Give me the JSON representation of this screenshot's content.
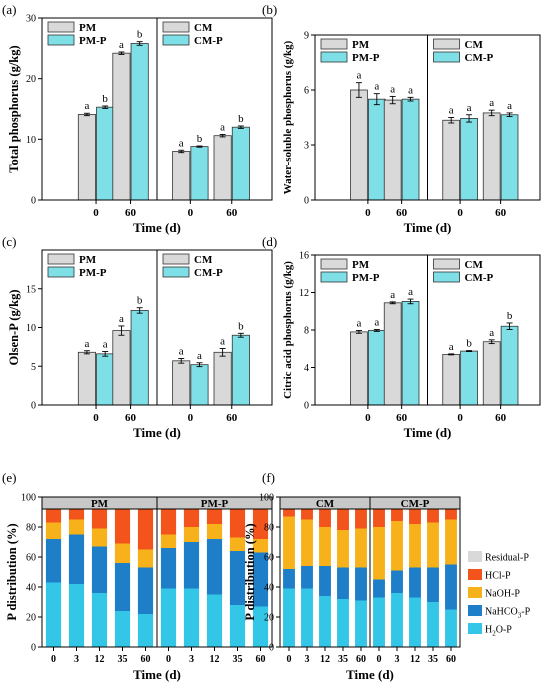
{
  "colors": {
    "gray": "#d9d9d9",
    "cyan": "#7fdfe6",
    "residual": "#d9d9d9",
    "hcl": "#f2541b",
    "naoh": "#f7b21b",
    "nahco3": "#1e7ec8",
    "h2o": "#33c6e6",
    "header": "#c8c8c8"
  },
  "chart_data": [
    {
      "panel": "(a)",
      "type": "bar",
      "ylabel": "Total phosphorus (g/kg)",
      "xlabel": "Time (d)",
      "ylim": [
        0,
        30
      ],
      "yticks": [
        0,
        10,
        20,
        30
      ],
      "legend": [
        "PM",
        "PM-P",
        "CM",
        "CM-P"
      ],
      "groups": [
        {
          "x": "0",
          "bars": [
            {
              "series": "PM",
              "value": 14.1,
              "err": 0.2,
              "label": "a"
            },
            {
              "series": "PM-P",
              "value": 15.3,
              "err": 0.2,
              "label": "b"
            }
          ]
        },
        {
          "x": "60",
          "bars": [
            {
              "series": "PM",
              "value": 24.2,
              "err": 0.2,
              "label": "a"
            },
            {
              "series": "PM-P",
              "value": 25.8,
              "err": 0.3,
              "label": "b"
            }
          ]
        },
        {
          "x": "0",
          "bars": [
            {
              "series": "CM",
              "value": 8.0,
              "err": 0.2,
              "label": "a"
            },
            {
              "series": "CM-P",
              "value": 8.8,
              "err": 0.1,
              "label": "b"
            }
          ]
        },
        {
          "x": "60",
          "bars": [
            {
              "series": "CM",
              "value": 10.6,
              "err": 0.2,
              "label": "a"
            },
            {
              "series": "CM-P",
              "value": 12.0,
              "err": 0.2,
              "label": "b"
            }
          ]
        }
      ]
    },
    {
      "panel": "(b)",
      "type": "bar",
      "ylabel": "Water-soluble phosphorus (g/kg)",
      "xlabel": "Time (d)",
      "ylim": [
        0,
        9
      ],
      "yticks": [
        0,
        3,
        6,
        9
      ],
      "legend": [
        "PM",
        "PM-P",
        "CM",
        "CM-P"
      ],
      "groups": [
        {
          "x": "0",
          "bars": [
            {
              "series": "PM",
              "value": 6.0,
              "err": 0.4,
              "label": "a"
            },
            {
              "series": "PM-P",
              "value": 5.5,
              "err": 0.3,
              "label": "a"
            }
          ]
        },
        {
          "x": "60",
          "bars": [
            {
              "series": "PM",
              "value": 5.45,
              "err": 0.2,
              "label": "a"
            },
            {
              "series": "PM-P",
              "value": 5.5,
              "err": 0.1,
              "label": "a"
            }
          ]
        },
        {
          "x": "0",
          "bars": [
            {
              "series": "CM",
              "value": 4.35,
              "err": 0.15,
              "label": "a"
            },
            {
              "series": "CM-P",
              "value": 4.45,
              "err": 0.2,
              "label": "a"
            }
          ]
        },
        {
          "x": "60",
          "bars": [
            {
              "series": "CM",
              "value": 4.75,
              "err": 0.15,
              "label": "a"
            },
            {
              "series": "CM-P",
              "value": 4.65,
              "err": 0.1,
              "label": "a"
            }
          ]
        }
      ]
    },
    {
      "panel": "(c)",
      "type": "bar",
      "ylabel": "Olsen-P (g/kg)",
      "xlabel": "Time (d)",
      "ylim": [
        0,
        20
      ],
      "yticks": [
        0,
        5,
        10,
        15
      ],
      "legend": [
        "PM",
        "PM-P",
        "CM",
        "CM-P"
      ],
      "groups": [
        {
          "x": "0",
          "bars": [
            {
              "series": "PM",
              "value": 6.8,
              "err": 0.2,
              "label": "a"
            },
            {
              "series": "PM-P",
              "value": 6.6,
              "err": 0.3,
              "label": "a"
            }
          ]
        },
        {
          "x": "60",
          "bars": [
            {
              "series": "PM",
              "value": 9.6,
              "err": 0.6,
              "label": "a"
            },
            {
              "series": "PM-P",
              "value": 12.2,
              "err": 0.35,
              "label": "b"
            }
          ]
        },
        {
          "x": "0",
          "bars": [
            {
              "series": "CM",
              "value": 5.7,
              "err": 0.3,
              "label": "a"
            },
            {
              "series": "CM-P",
              "value": 5.2,
              "err": 0.25,
              "label": "a"
            }
          ]
        },
        {
          "x": "60",
          "bars": [
            {
              "series": "CM",
              "value": 6.8,
              "err": 0.5,
              "label": "a"
            },
            {
              "series": "CM-P",
              "value": 9.0,
              "err": 0.25,
              "label": "b"
            }
          ]
        }
      ]
    },
    {
      "panel": "(d)",
      "type": "bar",
      "ylabel": "Citric acid phosphorus (g/kg)",
      "xlabel": "Time (d)",
      "ylim": [
        0,
        16
      ],
      "yticks": [
        0,
        4,
        8,
        12,
        16
      ],
      "legend": [
        "PM",
        "PM-P",
        "CM",
        "CM-P"
      ],
      "groups": [
        {
          "x": "0",
          "bars": [
            {
              "series": "PM",
              "value": 7.8,
              "err": 0.15,
              "label": "a"
            },
            {
              "series": "PM-P",
              "value": 7.95,
              "err": 0.1,
              "label": "a"
            }
          ]
        },
        {
          "x": "60",
          "bars": [
            {
              "series": "PM",
              "value": 10.9,
              "err": 0.1,
              "label": "a"
            },
            {
              "series": "PM-P",
              "value": 11.05,
              "err": 0.25,
              "label": "a"
            }
          ]
        },
        {
          "x": "0",
          "bars": [
            {
              "series": "CM",
              "value": 5.4,
              "err": 0.05,
              "label": "a"
            },
            {
              "series": "CM-P",
              "value": 5.75,
              "err": 0.05,
              "label": "b"
            }
          ]
        },
        {
          "x": "60",
          "bars": [
            {
              "series": "CM",
              "value": 6.75,
              "err": 0.2,
              "label": "a"
            },
            {
              "series": "CM-P",
              "value": 8.4,
              "err": 0.35,
              "label": "b"
            }
          ]
        }
      ]
    },
    {
      "panel": "(e)",
      "type": "bar",
      "stacked": true,
      "ylabel": "P distribution (%)",
      "xlabel": "Time (d)",
      "ylim": [
        0,
        100
      ],
      "yticks": [
        0,
        20,
        40,
        60,
        80,
        100
      ],
      "headers": [
        "PM",
        "PM-P"
      ],
      "categories": [
        "0",
        "3",
        "12",
        "35",
        "60",
        "0",
        "3",
        "12",
        "35",
        "60"
      ],
      "series": [
        {
          "name": "H2O-P",
          "values": [
            43,
            42,
            36,
            24,
            22,
            39,
            39,
            35,
            28,
            27
          ]
        },
        {
          "name": "NaHCO3-P",
          "values": [
            29,
            33,
            31,
            32,
            31,
            27,
            31,
            37,
            36,
            36
          ]
        },
        {
          "name": "NaOH-P",
          "values": [
            11,
            10,
            12,
            13,
            12,
            9,
            10,
            10,
            9,
            9
          ]
        },
        {
          "name": "HCl-P",
          "values": [
            17,
            15,
            21,
            31,
            35,
            25,
            20,
            18,
            27,
            28
          ]
        }
      ]
    },
    {
      "panel": "(f)",
      "type": "bar",
      "stacked": true,
      "ylabel": "P distribution (%)",
      "xlabel": "Time (d)",
      "ylim": [
        0,
        100
      ],
      "yticks": [
        0,
        20,
        40,
        60,
        80,
        100
      ],
      "headers": [
        "CM",
        "CM-P"
      ],
      "categories": [
        "0",
        "3",
        "12",
        "35",
        "60",
        "0",
        "3",
        "12",
        "35",
        "60"
      ],
      "series": [
        {
          "name": "H2O-P",
          "values": [
            39,
            39,
            34,
            32,
            31,
            33,
            36,
            33,
            30,
            25
          ]
        },
        {
          "name": "NaHCO3-P",
          "values": [
            13,
            15,
            20,
            21,
            22,
            12,
            15,
            20,
            23,
            30
          ]
        },
        {
          "name": "NaOH-P",
          "values": [
            35,
            31,
            26,
            25,
            26,
            35,
            33,
            29,
            30,
            30
          ]
        },
        {
          "name": "HCl-P",
          "values": [
            13,
            15,
            20,
            22,
            21,
            20,
            16,
            18,
            17,
            15
          ]
        }
      ]
    }
  ],
  "stack_legend": [
    {
      "name": "Residual-P",
      "color": "residual",
      "main": "Residual-P"
    },
    {
      "name": "HCl-P",
      "color": "hcl",
      "main": "HCl-P"
    },
    {
      "name": "NaOH-P",
      "color": "naoh",
      "main": "NaOH-P"
    },
    {
      "name": "NaHCO3-P",
      "color": "nahco3",
      "main": "NaHCO",
      "sub": "3",
      "post": "-P"
    },
    {
      "name": "H2O-P",
      "color": "h2o",
      "main": "H",
      "sub": "2",
      "post": "O-P"
    }
  ]
}
